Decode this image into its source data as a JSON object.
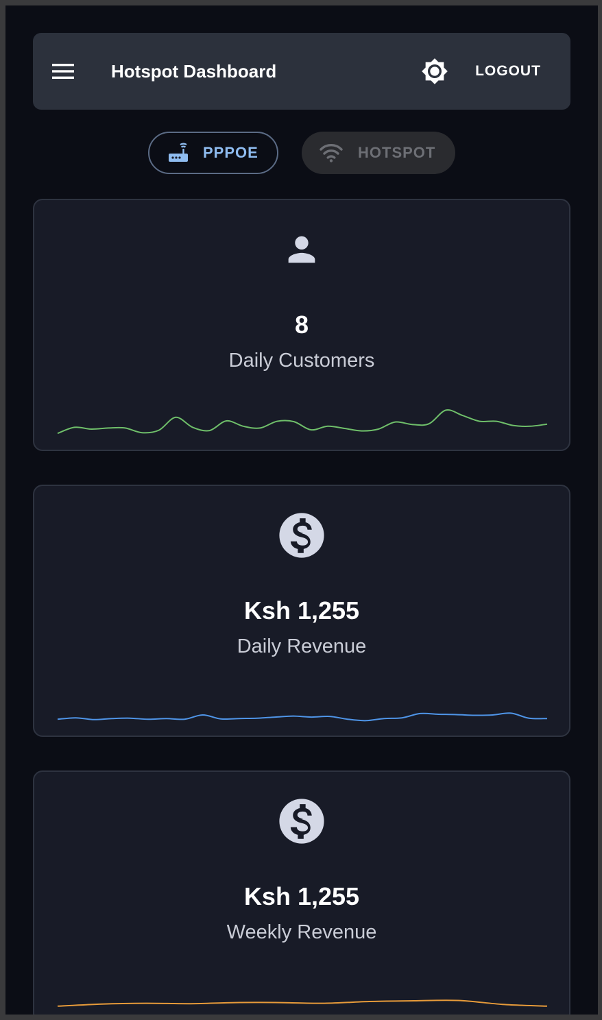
{
  "header": {
    "title": "Hotspot Dashboard",
    "logout_label": "LOGOUT",
    "menu_icon": "menu-icon",
    "theme_icon": "brightness-icon"
  },
  "toggle": {
    "options": [
      {
        "label": "PPPOE",
        "icon": "router-icon",
        "active": true
      },
      {
        "label": "HOTSPOT",
        "icon": "wifi-icon",
        "active": false
      }
    ]
  },
  "cards": [
    {
      "value": "8",
      "label": "Daily Customers",
      "icon": "person-icon",
      "color": "#6fbf6a",
      "trend": [
        38,
        55,
        50,
        53,
        53,
        40,
        47,
        83,
        55,
        46,
        73,
        58,
        53,
        72,
        71,
        48,
        58,
        52,
        45,
        50,
        70,
        63,
        65,
        103,
        88,
        72,
        72,
        60,
        58,
        64
      ]
    },
    {
      "value": "Ksh 1,255",
      "label": "Daily Revenue",
      "icon": "dollar-icon",
      "color": "#4f95e8",
      "trend": [
        38,
        42,
        37,
        40,
        41,
        38,
        40,
        38,
        50,
        39,
        40,
        41,
        44,
        47,
        44,
        46,
        38,
        34,
        40,
        42,
        54,
        52,
        51,
        49,
        50,
        55,
        41,
        40
      ]
    },
    {
      "value": "Ksh 1,255",
      "label": "Weekly Revenue",
      "icon": "dollar-icon",
      "color": "#e79b3a",
      "trend": [
        35,
        41,
        43,
        42,
        45,
        45,
        43,
        48,
        50,
        51,
        40,
        35
      ]
    }
  ]
}
